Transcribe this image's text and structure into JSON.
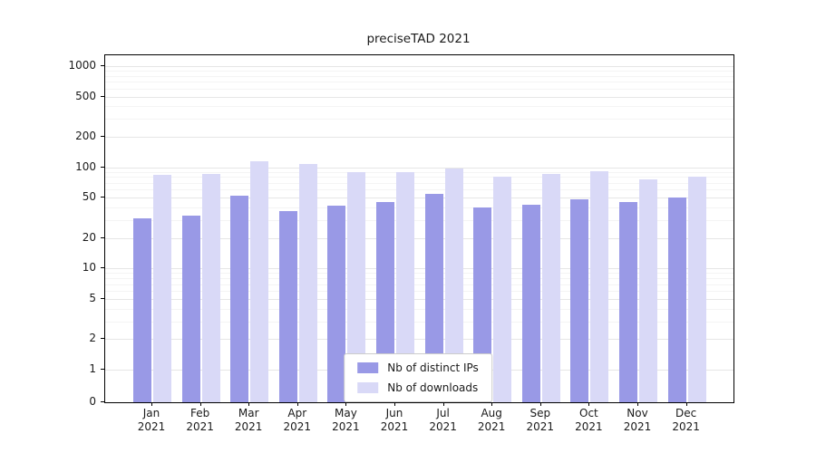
{
  "chart_data": {
    "type": "bar",
    "title": "preciseTAD 2021",
    "months": [
      "Jan",
      "Feb",
      "Mar",
      "Apr",
      "May",
      "Jun",
      "Jul",
      "Aug",
      "Sep",
      "Oct",
      "Nov",
      "Dec"
    ],
    "year": "2021",
    "series": [
      {
        "name": "Nb of distinct IPs",
        "color": "#9999e6",
        "values": [
          31,
          33,
          52,
          37,
          42,
          45,
          55,
          40,
          43,
          48,
          45,
          50
        ]
      },
      {
        "name": "Nb of downloads",
        "color": "#d9d9f7",
        "values": [
          85,
          86,
          114,
          108,
          90,
          90,
          98,
          80,
          86,
          91,
          76,
          81
        ]
      }
    ],
    "y_ticks": [
      0,
      1,
      2,
      5,
      10,
      20,
      50,
      100,
      200,
      500,
      1000
    ],
    "y_scale": "log-above-1-linear-below",
    "ylim": [
      0,
      1250
    ],
    "grid": "horizontal",
    "legend_position": "lower-center",
    "axis_color": "#000000",
    "grid_major_color": "#e6e6e6",
    "grid_minor_color": "#f4f4f4",
    "text_color": "#1a1a1a"
  }
}
